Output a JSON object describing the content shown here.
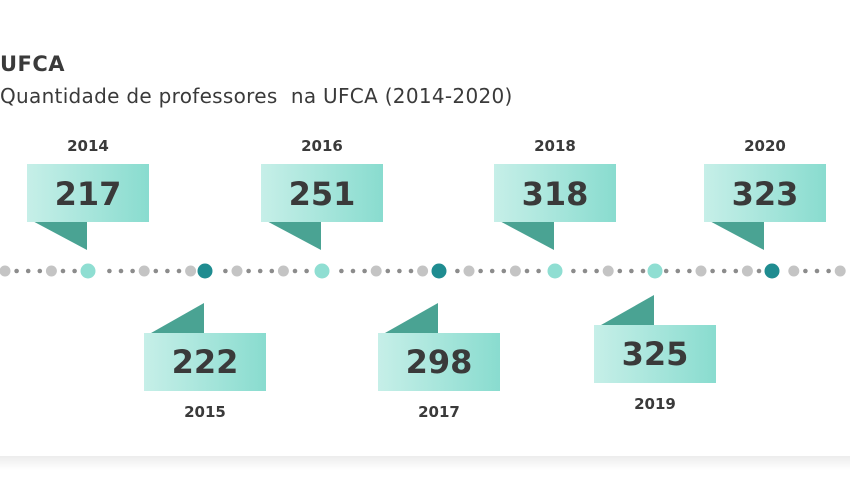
{
  "header": {
    "brand": "UFCA",
    "subtitle": "Quantidade de professores  na UFCA (2014-2020)"
  },
  "chart_data": {
    "type": "timeline",
    "title": "Quantidade de professores  na UFCA (2014-2020)",
    "categories": [
      "2014",
      "2015",
      "2016",
      "2017",
      "2018",
      "2019",
      "2020"
    ],
    "values": [
      217,
      222,
      251,
      298,
      318,
      325,
      323
    ],
    "series": [
      {
        "values": [
          217,
          222,
          251,
          298,
          318,
          325,
          323
        ]
      }
    ]
  },
  "colors": {
    "flag_light": "#c6efe8",
    "flag_mid": "#89dccf",
    "fold_dark": "#4aa393",
    "dot_gray": "#c4c4c4",
    "dot_small": "#8c8c8c",
    "dot_teal_light": "#8fded2",
    "dot_teal_dark": "#1f8c90",
    "text_dark": "#3a3a3a"
  }
}
